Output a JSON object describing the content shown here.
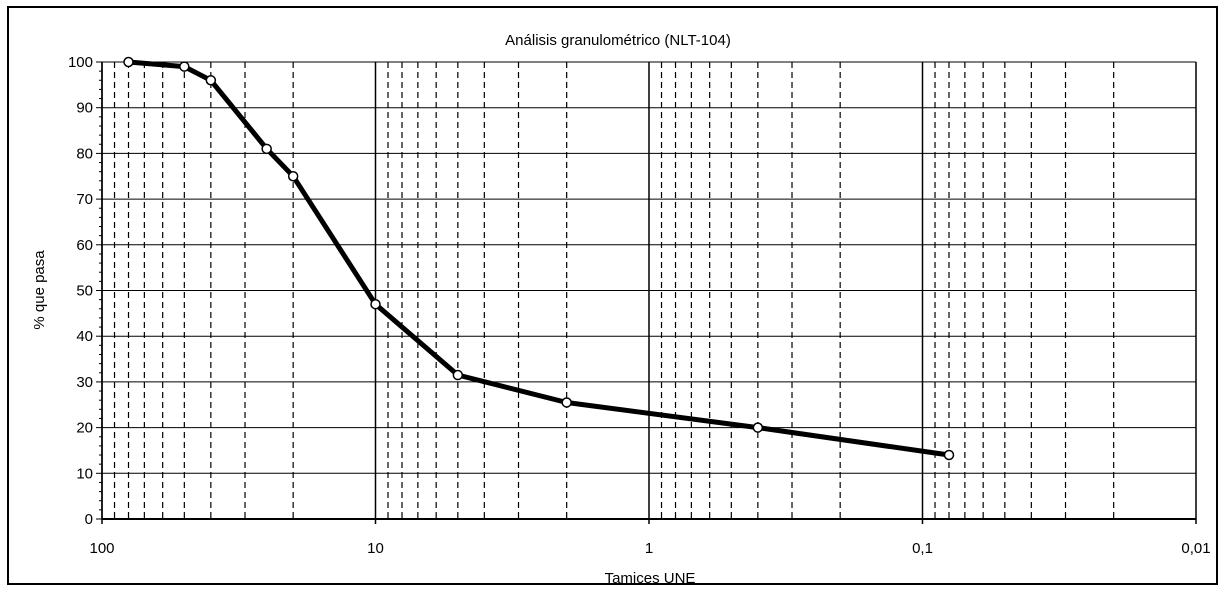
{
  "chart_data": {
    "type": "line",
    "title": "Análisis granulométrico (NLT-104)",
    "xlabel": "Tamices UNE",
    "ylabel": "% que pasa",
    "x_scale": "log",
    "x_reversed": true,
    "xlim": [
      100,
      0.01
    ],
    "ylim": [
      0,
      100
    ],
    "x_ticks": [
      100,
      10,
      1,
      0.1,
      0.01
    ],
    "x_tick_labels": [
      "100",
      "10",
      "1",
      "0,1",
      "0,01"
    ],
    "y_ticks": [
      0,
      10,
      20,
      30,
      40,
      50,
      60,
      70,
      80,
      90,
      100
    ],
    "y_tick_labels": [
      "0",
      "10",
      "20",
      "30",
      "40",
      "50",
      "60",
      "70",
      "80",
      "90",
      "100"
    ],
    "grid": true,
    "series": [
      {
        "x": [
          80,
          50,
          40,
          25,
          20,
          10,
          5,
          2,
          0.4,
          0.08
        ],
        "y": [
          100,
          99,
          96,
          81,
          75,
          47,
          31.5,
          25.5,
          20,
          14
        ]
      }
    ]
  }
}
